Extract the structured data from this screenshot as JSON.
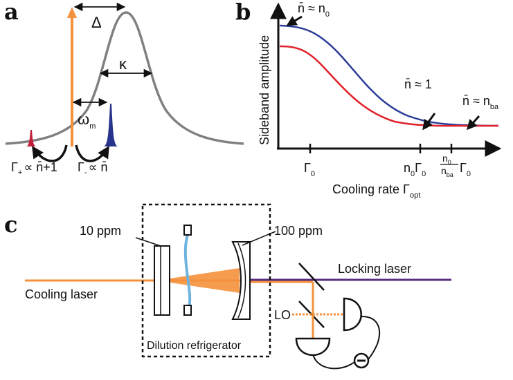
{
  "panels": {
    "a": "a",
    "b": "b",
    "c": "c"
  },
  "panel_a": {
    "delta": "Δ",
    "kappa": "κ",
    "omega": "ω",
    "omega_sub": "m",
    "gamma_plus_main": "Γ",
    "gamma_plus_sub": "+",
    "gamma_plus_rel": "∝ n̄+1",
    "gamma_minus_main": "Γ",
    "gamma_minus_sub": "-",
    "gamma_minus_rel": "∝ n̄",
    "colors": {
      "lorentzian": "#808080",
      "pump": "#f4913c",
      "red_sideband": "#c41e3a",
      "blue_sideband": "#28348c"
    }
  },
  "panel_b": {
    "ylabel": "Sideband amplitude",
    "xlabel_main": "Cooling rate Γ",
    "xlabel_sub": "opt",
    "tick_gamma0": "Γ",
    "tick_gamma0_sub": "0",
    "tick_n0gamma_n": "n",
    "tick_n0gamma_n_sub": "0",
    "tick_n0gamma_g": "Γ",
    "tick_n0gamma_g_sub": "0",
    "tick_frac_num": "n",
    "tick_frac_num_sub": "0",
    "tick_frac_den": "n",
    "tick_frac_den_sub": "ba",
    "tick_frac_g": "Γ",
    "tick_frac_g_sub": "0",
    "ann_n0": "n̄ ≈ n",
    "ann_n0_sub": "0",
    "ann_n1": "n̄ ≈ 1",
    "ann_nba": "n̄ ≈ n",
    "ann_nba_sub": "ba",
    "colors": {
      "blue_curve": "#2b3d9a",
      "red_curve": "#e0202a"
    }
  },
  "panel_c": {
    "label_10ppm": "10 ppm",
    "label_100ppm": "100 ppm",
    "cooling_laser": "Cooling laser",
    "locking_laser": "Locking laser",
    "lo": "LO",
    "dilution": "Dilution refrigerator",
    "colors": {
      "cooling": "#f4913c",
      "locking": "#5a2d82",
      "membrane": "#6fb3e0"
    }
  }
}
